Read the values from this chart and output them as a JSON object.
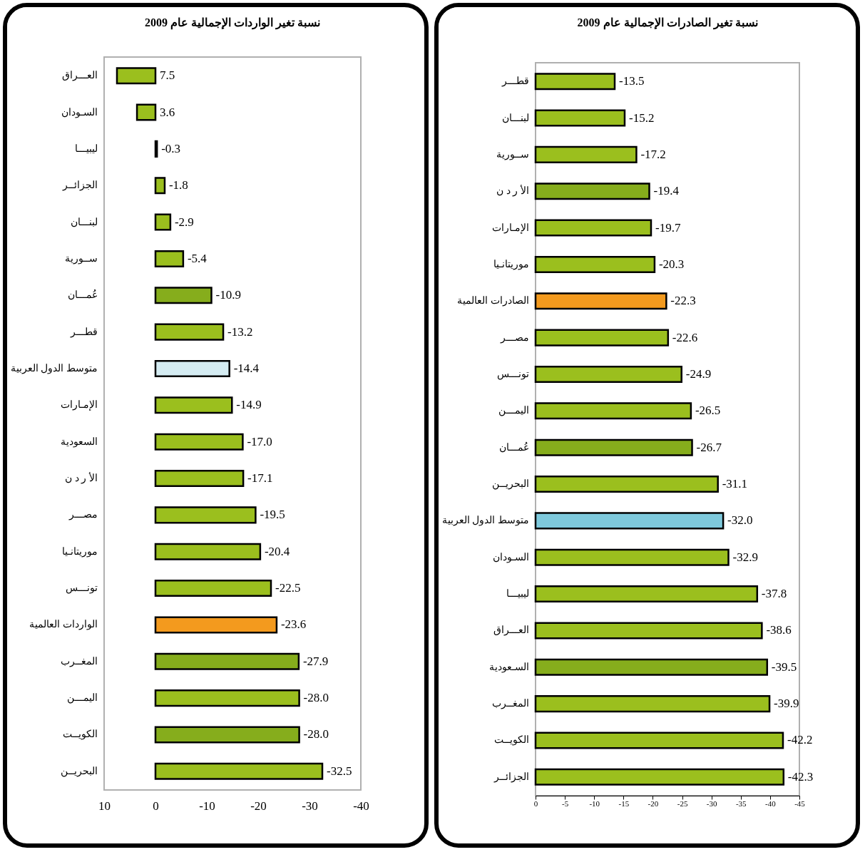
{
  "chart_data": [
    {
      "type": "bar",
      "orientation": "horizontal",
      "title": "نسبة تغير الواردات الإجمالية عام 2009",
      "categories": [
        "العـــراق",
        "السـودان",
        "ليبيـــا",
        "الجزائــر",
        "لبنـــان",
        "ســورية",
        "عُمـــان",
        "قطـــر",
        "متوسط الدول العربية",
        "الإمـارات",
        "السعودية",
        "الأ ر د ن",
        "مصـــر",
        "موريتانـيا",
        "تونـــس",
        "الواردات العالمية",
        "المغــرب",
        "اليمـــن",
        "الكويــت",
        "البحريــن"
      ],
      "values": [
        7.5,
        3.6,
        -0.3,
        -1.8,
        -2.9,
        -5.4,
        -10.9,
        -13.2,
        -14.4,
        -14.9,
        -17.0,
        -17.1,
        -19.5,
        -20.4,
        -22.5,
        -23.6,
        -27.9,
        -28.0,
        -28.0,
        -32.5
      ],
      "colors": [
        "#9bbf1e",
        "#9bbf1e",
        "#9bbf1e",
        "#9bbf1e",
        "#9bbf1e",
        "#9bbf1e",
        "#86ad1c",
        "#9bbf1e",
        "#d5ecf2",
        "#9bbf1e",
        "#9bbf1e",
        "#9bbf1e",
        "#9bbf1e",
        "#9bbf1e",
        "#9bbf1e",
        "#f39a1e",
        "#86ad1c",
        "#9bbf1e",
        "#86ad1c",
        "#9bbf1e"
      ],
      "value_labels": [
        "7.5",
        "3.6",
        "-0.3",
        "-1.8",
        "-2.9",
        "-5.4",
        "-10.9",
        "-13.2",
        "-14.4",
        "-14.9",
        "-17.0",
        "-17.1",
        "-19.5",
        "-20.4",
        "-22.5",
        "-23.6",
        "-27.9",
        "-28.0",
        "-28.0",
        "-32.5"
      ],
      "xlim": [
        10,
        -40
      ],
      "xticks": [
        10,
        0,
        -10,
        -20,
        -30,
        -40
      ]
    },
    {
      "type": "bar",
      "orientation": "horizontal",
      "title": "نسبة تغير الصادرات الإجمالية عام 2009",
      "categories": [
        "قطـــر",
        "لبنـــان",
        "ســورية",
        "الأ ر د ن",
        "الإمـارات",
        "موريتانـيا",
        "الصادرات العالمية",
        "مصـــر",
        "تونـــس",
        "اليمـــن",
        "عُمـــان",
        "البحريــن",
        "متوسط الدول العربية",
        "السـودان",
        "ليبيـــا",
        "العـــراق",
        "السـعودية",
        "المغــرب",
        "الكويــت",
        "الجزائــر"
      ],
      "values": [
        -13.5,
        -15.2,
        -17.2,
        -19.4,
        -19.7,
        -20.3,
        -22.3,
        -22.6,
        -24.9,
        -26.5,
        -26.7,
        -31.1,
        -32.0,
        -32.9,
        -37.8,
        -38.6,
        -39.5,
        -39.9,
        -42.2,
        -42.3
      ],
      "colors": [
        "#9bbf1e",
        "#9bbf1e",
        "#9bbf1e",
        "#86ad1c",
        "#9bbf1e",
        "#9bbf1e",
        "#f39a1e",
        "#9bbf1e",
        "#9bbf1e",
        "#9bbf1e",
        "#86ad1c",
        "#9bbf1e",
        "#7ec9dc",
        "#9bbf1e",
        "#9bbf1e",
        "#9bbf1e",
        "#86ad1c",
        "#9bbf1e",
        "#9bbf1e",
        "#9bbf1e"
      ],
      "value_labels": [
        "-13.5",
        "-15.2",
        "-17.2",
        "-19.4",
        "-19.7",
        "-20.3",
        "-22.3",
        "-22.6",
        "-24.9",
        "-26.5",
        "-26.7",
        "-31.1",
        "-32.0",
        "-32.9",
        "-37.8",
        "-38.6",
        "-39.5",
        "-39.9",
        "-42.2",
        "-42.3"
      ],
      "xlim": [
        0,
        -45
      ],
      "xticks": [
        0,
        -5,
        -10,
        -15,
        -20,
        -25,
        -30,
        -35,
        -40,
        -45
      ]
    }
  ]
}
